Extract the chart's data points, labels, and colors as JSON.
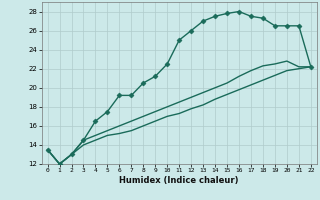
{
  "xlabel": "Humidex (Indice chaleur)",
  "xlim": [
    -0.5,
    22.5
  ],
  "ylim": [
    12,
    29
  ],
  "xticks": [
    0,
    1,
    2,
    3,
    4,
    5,
    6,
    7,
    8,
    9,
    10,
    11,
    12,
    13,
    14,
    15,
    16,
    17,
    18,
    19,
    20,
    21,
    22
  ],
  "yticks": [
    12,
    14,
    16,
    18,
    20,
    22,
    24,
    26,
    28
  ],
  "background_color": "#cce9e9",
  "line_color": "#1a6b5a",
  "line1_x": [
    0,
    1,
    2,
    3,
    4,
    5,
    6,
    7,
    8,
    9,
    10,
    11,
    12,
    13,
    14,
    15,
    16,
    17,
    18,
    19,
    20,
    21,
    22
  ],
  "line1_y": [
    13.5,
    12.0,
    13.0,
    14.5,
    16.5,
    17.5,
    19.2,
    19.2,
    20.5,
    21.2,
    22.5,
    25.0,
    26.0,
    27.0,
    27.5,
    27.8,
    28.0,
    27.5,
    27.3,
    26.5,
    26.5,
    26.5,
    22.2
  ],
  "line2_x": [
    0,
    1,
    2,
    3,
    4,
    5,
    6,
    7,
    8,
    9,
    10,
    11,
    12,
    13,
    14,
    15,
    16,
    17,
    18,
    19,
    20,
    21,
    22
  ],
  "line2_y": [
    13.5,
    12.0,
    13.0,
    14.5,
    15.0,
    15.5,
    16.0,
    16.5,
    17.0,
    17.5,
    18.0,
    18.5,
    19.0,
    19.5,
    20.0,
    20.5,
    21.2,
    21.8,
    22.3,
    22.5,
    22.8,
    22.2,
    22.2
  ],
  "line3_x": [
    0,
    1,
    2,
    3,
    4,
    5,
    6,
    7,
    8,
    9,
    10,
    11,
    12,
    13,
    14,
    15,
    16,
    17,
    18,
    19,
    20,
    21,
    22
  ],
  "line3_y": [
    13.5,
    12.0,
    13.0,
    14.0,
    14.5,
    15.0,
    15.2,
    15.5,
    16.0,
    16.5,
    17.0,
    17.3,
    17.8,
    18.2,
    18.8,
    19.3,
    19.8,
    20.3,
    20.8,
    21.3,
    21.8,
    22.0,
    22.2
  ],
  "marker": "D",
  "markersize": 2.5,
  "linewidth": 1.0
}
